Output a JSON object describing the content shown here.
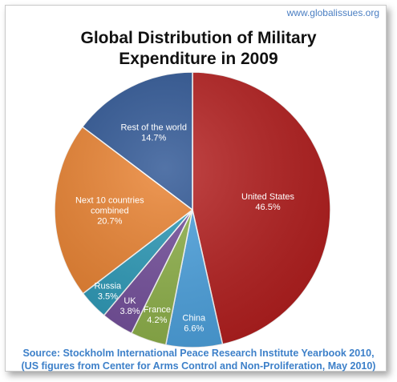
{
  "site_url": "www.globalissues.org",
  "title_line1": "Global Distribution of Military",
  "title_line2": "Expenditure in 2009",
  "source_line1": "Source: Stockholm International Peace Research Institute Yearbook 2010,",
  "source_line2": "(US figures from Center for Arms Control and Non-Proliferation, May 2010)",
  "chart_data": {
    "type": "pie",
    "title": "Global Distribution of Military Expenditure in 2009",
    "start_angle_deg": 0,
    "direction": "clockwise",
    "slices": [
      {
        "label": [
          "United States",
          "46.5%"
        ],
        "value": 46.5,
        "color": "#b51f1f"
      },
      {
        "label": [
          "China",
          "6.6%"
        ],
        "value": 6.6,
        "color": "#4da3e0"
      },
      {
        "label": [
          "France",
          "4.2%"
        ],
        "value": 4.2,
        "color": "#8fb24a"
      },
      {
        "label": [
          "UK",
          "3.8%"
        ],
        "value": 3.8,
        "color": "#744f9c"
      },
      {
        "label": [
          "Russia",
          "3.5%"
        ],
        "value": 3.5,
        "color": "#2c9ab8"
      },
      {
        "label": [
          "Next 10 countries",
          "combined",
          "20.7%"
        ],
        "value": 20.7,
        "color": "#ea8230"
      },
      {
        "label": [
          "Rest of the world",
          "14.7%"
        ],
        "value": 14.7,
        "color": "#2d5594"
      }
    ]
  }
}
